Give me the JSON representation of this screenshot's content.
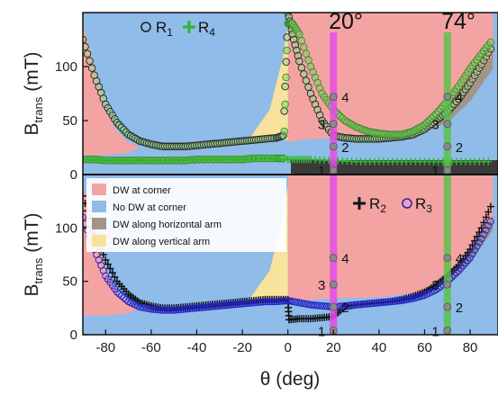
{
  "colors": {
    "dw_corner": "#f4a3a3",
    "no_dw_corner": "#8fbce8",
    "dw_horizontal": "#a39488",
    "dw_vertical": "#f7e39c",
    "line_20": "#e64ce6",
    "line_74": "#5cc24a",
    "r1_marker": "#222222",
    "r4_marker": "#2fb52f",
    "r2_marker": "#111111",
    "r3_marker": "#2626c8",
    "marker_dot": "#8a8a8a"
  },
  "chart_data": [
    {
      "type": "scatter",
      "panel": "top",
      "ylabel": "B",
      "ylabel_sub": "trans",
      "ylabel_unit": " (mT)",
      "xlim": [
        -90,
        90
      ],
      "ylim": [
        0,
        150
      ],
      "yticks": [
        0,
        50,
        100
      ],
      "angle_labels": [
        "20°",
        "74°"
      ],
      "marker_lines_x": [
        20,
        70
      ],
      "marker_points_y": [
        4,
        26,
        47,
        72
      ],
      "marker_labels": [
        "1",
        "2",
        "3",
        "4"
      ],
      "legend": [
        "R",
        "R"
      ],
      "legend_subs": [
        "1",
        "4"
      ],
      "series": [
        {
          "marker": "circle",
          "x": [
            -90,
            -85,
            -80,
            -75,
            -70,
            -65,
            -60,
            -55,
            -50,
            -45,
            -40,
            -35,
            -30,
            -25,
            -20,
            -15,
            -10,
            -5,
            -2,
            0,
            2,
            5,
            10,
            15,
            20,
            25,
            30,
            35,
            40,
            45,
            50,
            55,
            60,
            65,
            70,
            75,
            80,
            85,
            90
          ],
          "y": [
            125,
            92,
            65,
            48,
            37,
            31,
            28,
            26,
            26,
            26,
            27,
            28,
            29,
            30,
            31,
            32,
            33,
            34,
            36,
            150,
            130,
            105,
            75,
            50,
            36,
            34,
            33,
            33,
            33,
            34,
            35,
            37,
            42,
            50,
            58,
            70,
            85,
            102,
            120
          ]
        },
        {
          "marker": "circle-green",
          "x": [
            -90,
            -85,
            -80,
            -75,
            -70,
            -65,
            -60,
            -55,
            -50,
            -45,
            -40,
            -35,
            -30,
            -25,
            -20,
            -15,
            -10,
            -5,
            -2,
            0,
            2,
            5,
            10,
            15,
            20,
            25,
            30,
            35,
            40,
            45,
            50,
            55,
            60,
            65,
            70,
            75,
            80,
            85,
            90
          ],
          "y": [
            14,
            14,
            13,
            13,
            13,
            13,
            13,
            13,
            13,
            13,
            14,
            14,
            14,
            14,
            14,
            15,
            15,
            15,
            15,
            140,
            140,
            130,
            100,
            75,
            60,
            50,
            44,
            40,
            38,
            37,
            37,
            40,
            46,
            56,
            68,
            82,
            98,
            112,
            125
          ]
        },
        {
          "marker": "plus-green",
          "x": [
            -90,
            -80,
            -70,
            -60,
            -50,
            -40,
            -30,
            -20,
            -10,
            0,
            5,
            10,
            20,
            30,
            40,
            50,
            60,
            70,
            80,
            90
          ],
          "y": [
            14,
            13,
            13,
            13,
            13,
            14,
            14,
            14,
            15,
            14,
            14,
            14,
            13,
            12,
            12,
            12,
            12,
            12,
            12,
            12
          ]
        }
      ]
    },
    {
      "type": "scatter",
      "panel": "bottom",
      "xlabel": "θ (deg)",
      "ylabel": "B",
      "ylabel_sub": "trans",
      "ylabel_unit": " (mT)",
      "xlim": [
        -90,
        90
      ],
      "ylim": [
        0,
        150
      ],
      "xticks": [
        -80,
        -60,
        -40,
        -20,
        0,
        20,
        40,
        60,
        80
      ],
      "yticks": [
        0,
        50,
        100
      ],
      "marker_lines_x": [
        20,
        70
      ],
      "marker_points_y": [
        4,
        26,
        47,
        72
      ],
      "marker_labels": [
        "1",
        "2",
        "3",
        "4"
      ],
      "legend": [
        "R",
        "R"
      ],
      "legend_subs": [
        "2",
        "3"
      ],
      "region_legend": [
        "DW at corner",
        "No DW at corner",
        "DW along horizontal arm",
        "DW along vertical arm"
      ],
      "series": [
        {
          "marker": "plus",
          "x": [
            -90,
            -85,
            -80,
            -75,
            -70,
            -65,
            -60,
            -55,
            -50,
            -45,
            -40,
            -35,
            -30,
            -25,
            -20,
            -15,
            -10,
            -5,
            0,
            0.5,
            5,
            10,
            15,
            20,
            25,
            30,
            35,
            40,
            45,
            50,
            55,
            60,
            65,
            70,
            75,
            80,
            85,
            90
          ],
          "y": [
            130,
            95,
            70,
            50,
            38,
            30,
            27,
            25,
            25,
            26,
            27,
            28,
            29,
            30,
            31,
            32,
            33,
            33,
            33,
            14,
            15,
            15,
            16,
            17,
            26,
            28,
            29,
            30,
            31,
            33,
            36,
            40,
            46,
            55,
            65,
            80,
            100,
            125
          ]
        },
        {
          "marker": "circle-blue",
          "x": [
            -90,
            -85,
            -80,
            -75,
            -70,
            -65,
            -60,
            -55,
            -50,
            -45,
            -40,
            -35,
            -30,
            -25,
            -20,
            -15,
            -10,
            -5,
            0,
            5,
            10,
            15,
            20,
            25,
            30,
            35,
            40,
            45,
            50,
            55,
            60,
            65,
            70,
            75,
            80,
            85,
            90
          ],
          "y": [
            110,
            80,
            55,
            40,
            31,
            26,
            24,
            23,
            23,
            24,
            25,
            26,
            27,
            28,
            29,
            30,
            31,
            31,
            32,
            30,
            28,
            27,
            26,
            27,
            28,
            29,
            30,
            31,
            32,
            34,
            37,
            42,
            50,
            60,
            72,
            90,
            110
          ]
        }
      ]
    }
  ]
}
